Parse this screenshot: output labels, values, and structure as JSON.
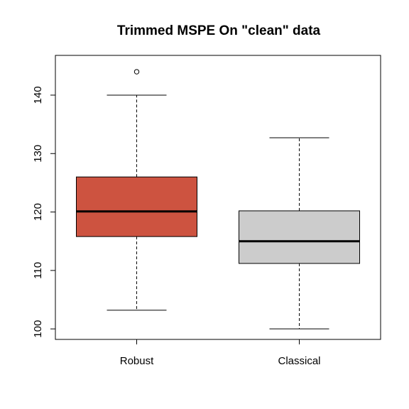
{
  "chart_data": {
    "type": "boxplot",
    "title": "Trimmed MSPE On \"clean\" data",
    "xlabel": "",
    "ylabel": "",
    "ylim": [
      98.2,
      146.8
    ],
    "yticks": [
      100,
      110,
      120,
      130,
      140
    ],
    "categories": [
      "Robust",
      "Classical"
    ],
    "series": [
      {
        "category": "Robust",
        "color": "#CD5340",
        "whisker_low": 103.2,
        "q1": 115.8,
        "median": 120.1,
        "q3": 126.0,
        "whisker_high": 140.0,
        "outliers": [
          144.0
        ]
      },
      {
        "category": "Classical",
        "color": "#CCCCCC",
        "whisker_low": 100.0,
        "q1": 111.2,
        "median": 115.0,
        "q3": 120.2,
        "whisker_high": 132.7,
        "outliers": []
      }
    ],
    "grid": false,
    "legend": "none"
  }
}
